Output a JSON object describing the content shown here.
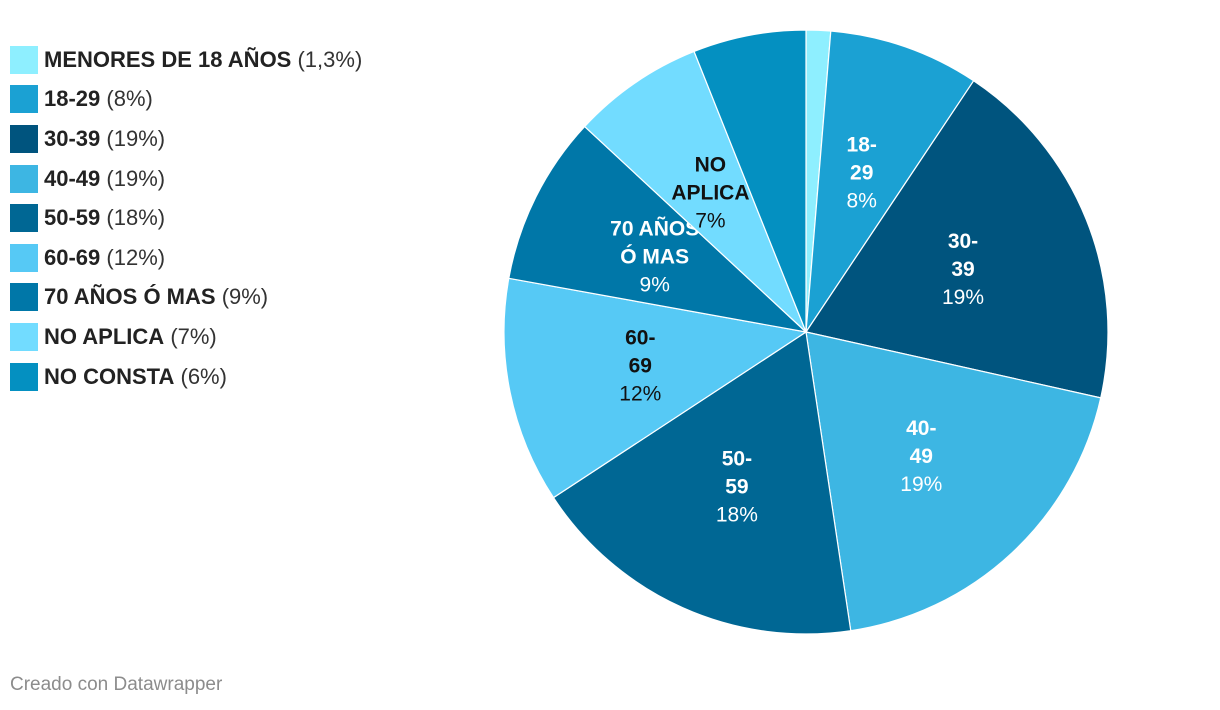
{
  "chart_data": {
    "type": "pie",
    "title": "",
    "slices": [
      {
        "legend": "MENORES DE 18 AÑOS",
        "value_text": "(1,3%)",
        "value": 1.3,
        "color": "#8EEFFF",
        "label_lines": [],
        "pct_label": "",
        "label_color": "#000000"
      },
      {
        "legend": "18-29",
        "value_text": "(8%)",
        "value": 8,
        "color": "#1BA1D3",
        "label_lines": [
          "18-",
          "29"
        ],
        "pct_label": "8%",
        "label_color": "#ffffff"
      },
      {
        "legend": "30-39",
        "value_text": "(19%)",
        "value": 19,
        "color": "#00547E",
        "label_lines": [
          "30-",
          "39"
        ],
        "pct_label": "19%",
        "label_color": "#ffffff"
      },
      {
        "legend": "40-49",
        "value_text": "(19%)",
        "value": 19,
        "color": "#3DB6E3",
        "label_lines": [
          "40-",
          "49"
        ],
        "pct_label": "19%",
        "label_color": "#ffffff"
      },
      {
        "legend": "50-59",
        "value_text": "(18%)",
        "value": 18,
        "color": "#006794",
        "label_lines": [
          "50-",
          "59"
        ],
        "pct_label": "18%",
        "label_color": "#ffffff"
      },
      {
        "legend": "60-69",
        "value_text": "(12%)",
        "value": 12,
        "color": "#56C9F5",
        "label_lines": [
          "60-",
          "69"
        ],
        "pct_label": "12%",
        "label_color": "#111111"
      },
      {
        "legend": "70 AÑOS Ó MAS",
        "value_text": "(9%)",
        "value": 9,
        "color": "#0077A8",
        "label_lines": [
          "70 AÑOS",
          "Ó MAS"
        ],
        "pct_label": "9%",
        "label_color": "#ffffff"
      },
      {
        "legend": "NO APLICA",
        "value_text": "(7%)",
        "value": 7,
        "color": "#72DCFF",
        "label_lines": [
          "NO",
          "APLICA"
        ],
        "pct_label": "7%",
        "label_color": "#111111"
      },
      {
        "legend": "NO CONSTA",
        "value_text": "(6%)",
        "value": 6,
        "color": "#0490C1",
        "label_lines": [],
        "pct_label": "",
        "label_color": "#ffffff"
      }
    ]
  },
  "footer": {
    "credit": "Creado con Datawrapper"
  }
}
